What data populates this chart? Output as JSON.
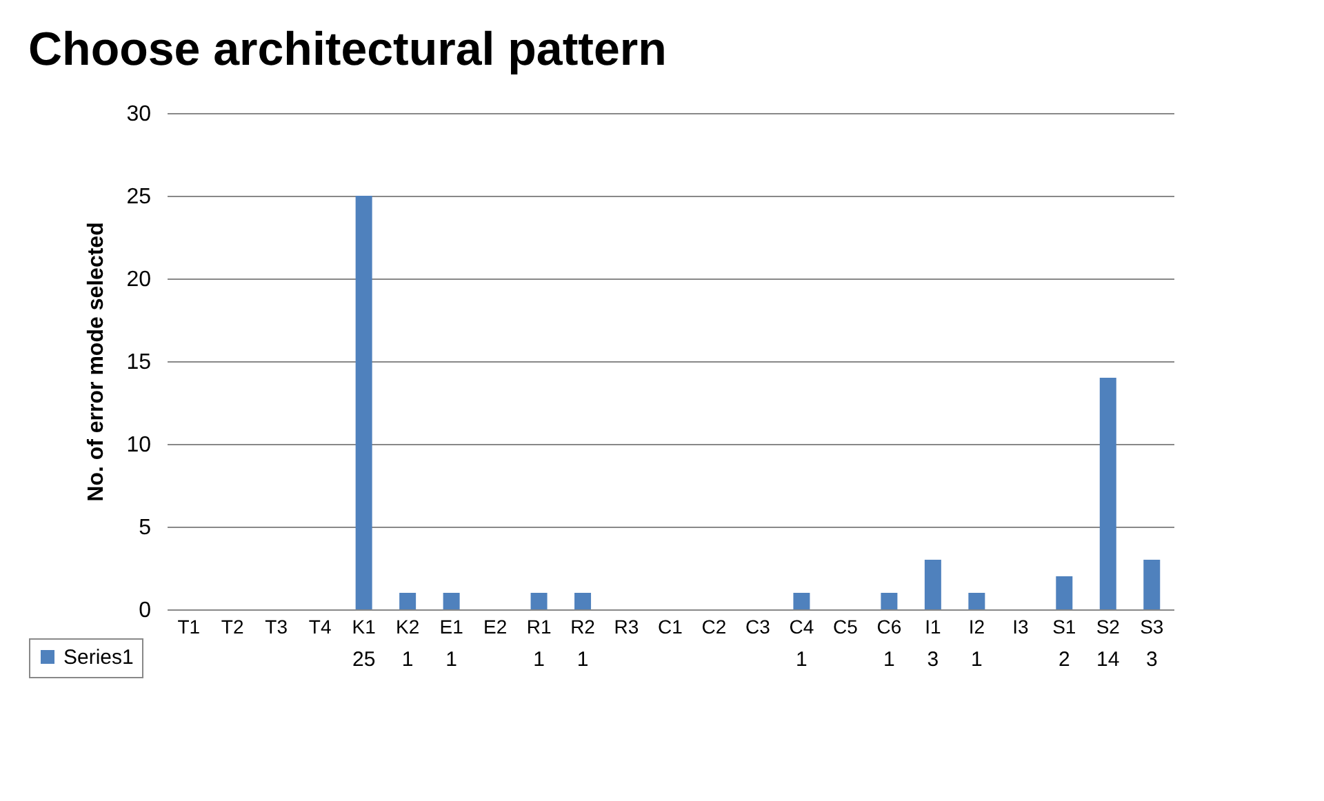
{
  "chart_data": {
    "type": "bar",
    "title": "Choose architectural pattern",
    "ylabel": "No. of error mode selected",
    "categories": [
      "T1",
      "T2",
      "T3",
      "T4",
      "K1",
      "K2",
      "E1",
      "E2",
      "R1",
      "R2",
      "R3",
      "C1",
      "C2",
      "C3",
      "C4",
      "C5",
      "C6",
      "I1",
      "I2",
      "I3",
      "S1",
      "S2",
      "S3"
    ],
    "series": [
      {
        "name": "Series1",
        "color": "#4f81bd",
        "values": [
          null,
          null,
          null,
          null,
          25,
          1,
          1,
          null,
          1,
          1,
          null,
          null,
          null,
          null,
          1,
          null,
          1,
          3,
          1,
          null,
          2,
          14,
          3
        ]
      }
    ],
    "ylim": [
      0,
      30
    ],
    "yticks": [
      0,
      5,
      10,
      15,
      20,
      25,
      30
    ],
    "grid": "y",
    "legend": "bottom left",
    "data_labels": true
  }
}
